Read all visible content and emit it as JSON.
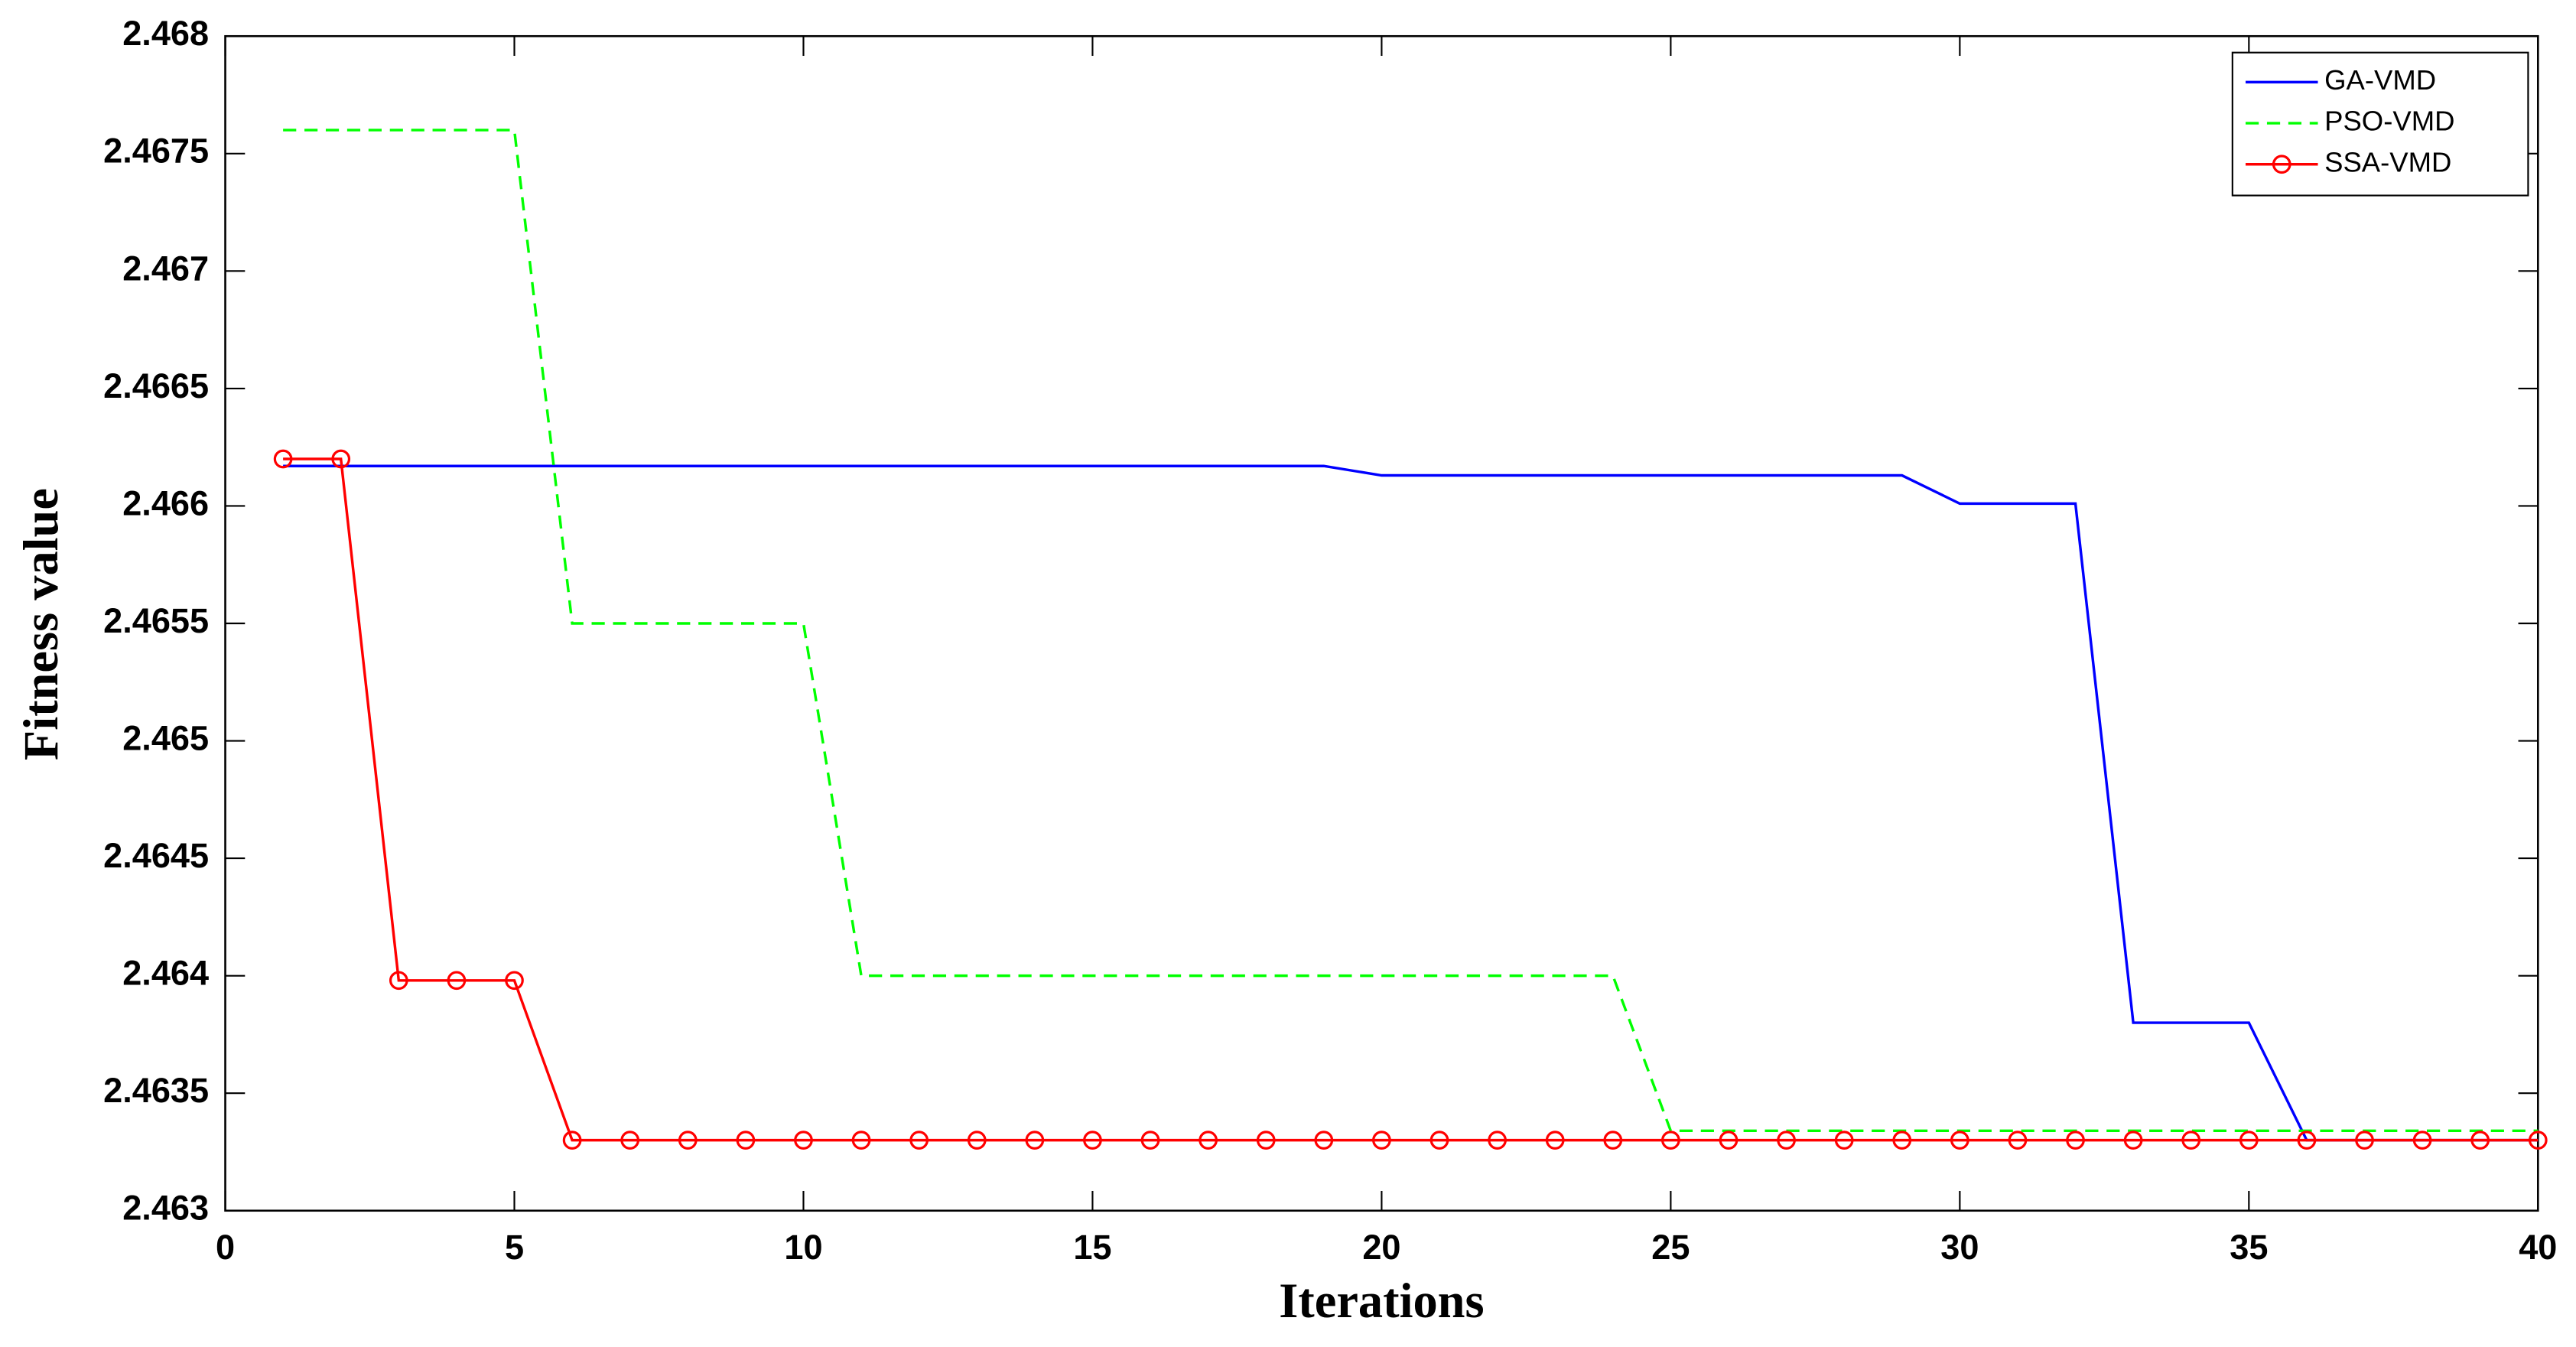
{
  "chart_data": {
    "type": "line",
    "x_label": "Iterations",
    "y_label": "Fitness value",
    "x": [
      1,
      2,
      3,
      4,
      5,
      6,
      7,
      8,
      9,
      10,
      11,
      12,
      13,
      14,
      15,
      16,
      17,
      18,
      19,
      20,
      21,
      22,
      23,
      24,
      25,
      26,
      27,
      28,
      29,
      30,
      31,
      32,
      33,
      34,
      35,
      36,
      37,
      38,
      39,
      40
    ],
    "series": [
      {
        "name": "GA-VMD",
        "color": "#0000ff",
        "dash": "solid",
        "marker": "none",
        "values": [
          2.46617,
          2.46617,
          2.46617,
          2.46617,
          2.46617,
          2.46617,
          2.46617,
          2.46617,
          2.46617,
          2.46617,
          2.46617,
          2.46617,
          2.46617,
          2.46617,
          2.46617,
          2.46617,
          2.46617,
          2.46617,
          2.46617,
          2.46613,
          2.46613,
          2.46613,
          2.46613,
          2.46613,
          2.46613,
          2.46613,
          2.46613,
          2.46613,
          2.46613,
          2.46601,
          2.46601,
          2.46601,
          2.4638,
          2.4638,
          2.4638,
          2.4633,
          2.4633,
          2.4633,
          2.4633,
          2.4633
        ]
      },
      {
        "name": "PSO-VMD",
        "color": "#00ff00",
        "dash": "dashed",
        "marker": "none",
        "values": [
          2.4676,
          2.4676,
          2.4676,
          2.4676,
          2.4676,
          2.4655,
          2.4655,
          2.4655,
          2.4655,
          2.4655,
          2.464,
          2.464,
          2.464,
          2.464,
          2.464,
          2.464,
          2.464,
          2.464,
          2.464,
          2.464,
          2.464,
          2.464,
          2.464,
          2.464,
          2.46334,
          2.46334,
          2.46334,
          2.46334,
          2.46334,
          2.46334,
          2.46334,
          2.46334,
          2.46334,
          2.46334,
          2.46334,
          2.46334,
          2.46334,
          2.46334,
          2.46334,
          2.46334
        ]
      },
      {
        "name": "SSA-VMD",
        "color": "#ff0000",
        "dash": "solid",
        "marker": "circle",
        "values": [
          2.4662,
          2.4662,
          2.46398,
          2.46398,
          2.46398,
          2.4633,
          2.4633,
          2.4633,
          2.4633,
          2.4633,
          2.4633,
          2.4633,
          2.4633,
          2.4633,
          2.4633,
          2.4633,
          2.4633,
          2.4633,
          2.4633,
          2.4633,
          2.4633,
          2.4633,
          2.4633,
          2.4633,
          2.4633,
          2.4633,
          2.4633,
          2.4633,
          2.4633,
          2.4633,
          2.4633,
          2.4633,
          2.4633,
          2.4633,
          2.4633,
          2.4633,
          2.4633,
          2.4633,
          2.4633,
          2.4633
        ]
      }
    ],
    "xlim": [
      0,
      40
    ],
    "xticks": [
      0,
      5,
      10,
      15,
      20,
      25,
      30,
      35,
      40
    ],
    "ylim": [
      2.463,
      2.468
    ],
    "yticks": [
      2.463,
      2.4635,
      2.464,
      2.4645,
      2.465,
      2.4655,
      2.466,
      2.4665,
      2.467,
      2.4675,
      2.468
    ],
    "grid": false,
    "legend": "top-right"
  }
}
